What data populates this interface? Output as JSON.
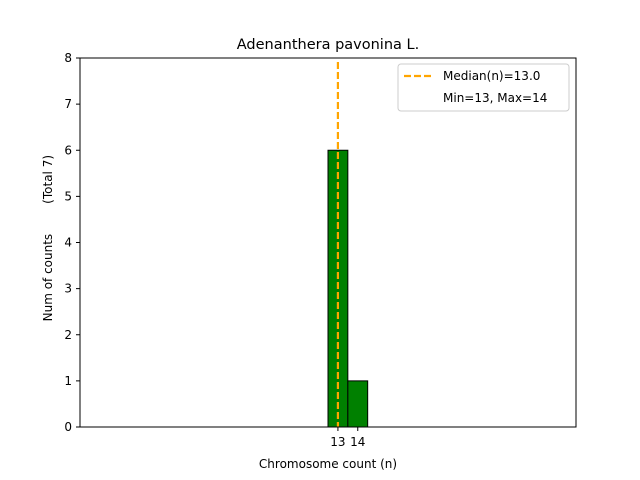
{
  "chart_data": {
    "type": "bar",
    "title": "Adenanthera pavonina L.",
    "xlabel": "Chromosome count (n)",
    "ylabel": "Num of counts",
    "ylabel_note": "(Total 7)",
    "x_ticks": [
      13,
      14
    ],
    "bars": [
      {
        "x": 13,
        "value": 6
      },
      {
        "x": 14,
        "value": 1
      }
    ],
    "baseline_x_range": [
      5,
      17
    ],
    "xlim": [
      0,
      25
    ],
    "ylim": [
      0,
      8
    ],
    "y_ticks": [
      0,
      1,
      2,
      3,
      4,
      5,
      6,
      7,
      8
    ],
    "median_line": {
      "x": 13.0
    },
    "legend": {
      "placement": "top-right",
      "entries": [
        "Median(n)=13.0",
        "Min=13, Max=14"
      ]
    },
    "colors": {
      "bar_fill": "#008000",
      "bar_edge": "#000000",
      "median": "#FFA500"
    },
    "grid": false
  }
}
